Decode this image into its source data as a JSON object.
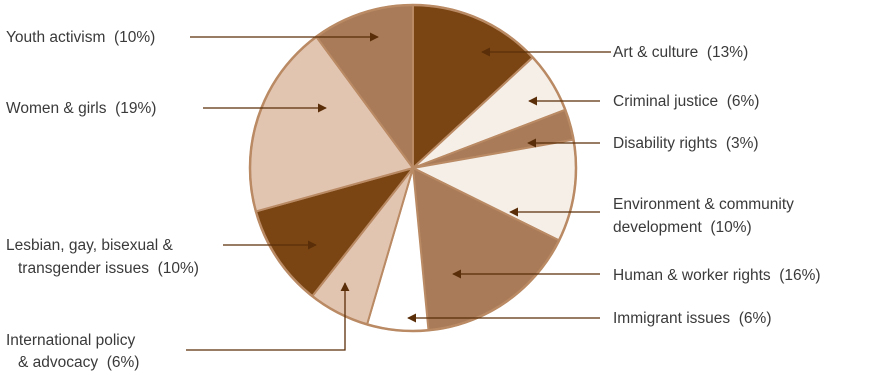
{
  "chart_data": {
    "type": "pie",
    "title": "",
    "slices": [
      {
        "label": "Art & culture",
        "value_label": "(13%)",
        "value": 13,
        "color": "#7a4513"
      },
      {
        "label": "Criminal justice",
        "value_label": "(6%)",
        "value": 6,
        "color": "#f6efe8"
      },
      {
        "label": "Disability rights",
        "value_label": "(3%)",
        "value": 3,
        "color": "#a97b58"
      },
      {
        "label": "Environment & community development",
        "label_lines": [
          "Environment & community",
          "development"
        ],
        "value_label": "(10%)",
        "value": 10,
        "color": "#f6efe8"
      },
      {
        "label": "Human & worker rights",
        "value_label": "(16%)",
        "value": 16,
        "color": "#a97b58"
      },
      {
        "label": "Immigrant issues",
        "value_label": "(6%)",
        "value": 6,
        "color": "#ffffff"
      },
      {
        "label": "International policy & advocacy",
        "label_lines": [
          "International policy",
          "& advocacy"
        ],
        "value_label": "(6%)",
        "value": 6,
        "color": "#e2c5b1"
      },
      {
        "label": "Lesbian, gay, bisexual & transgender issues",
        "label_lines": [
          "Lesbian, gay, bisexual &",
          "transgender issues"
        ],
        "value_label": "(10%)",
        "value": 10,
        "color": "#7a4513"
      },
      {
        "label": "Women & girls",
        "value_label": "(19%)",
        "value": 19,
        "color": "#e2c5b1"
      },
      {
        "label": "Youth activism",
        "value_label": "(10%)",
        "value": 10,
        "color": "#a97b58"
      }
    ],
    "outline_color": "#b98a64",
    "arrow_color": "#5a2e08"
  }
}
